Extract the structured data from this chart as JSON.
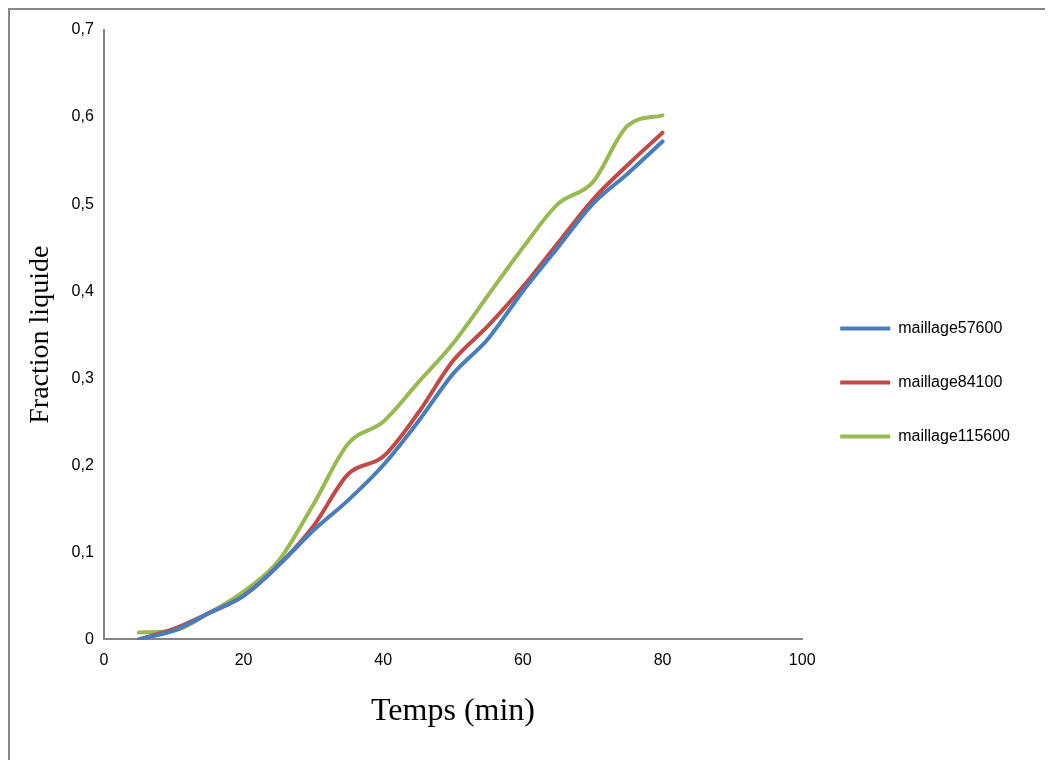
{
  "chart_data": {
    "type": "line",
    "xlabel": "Temps (min)",
    "ylabel": "Fraction liquide",
    "x": [
      5,
      10,
      15,
      20,
      25,
      30,
      35,
      40,
      45,
      50,
      55,
      60,
      65,
      70,
      75,
      80
    ],
    "series": [
      {
        "name": "maillage57600",
        "color": "#4a7ebb",
        "values": [
          0.0,
          0.01,
          0.03,
          0.05,
          0.085,
          0.125,
          0.16,
          0.2,
          0.25,
          0.305,
          0.345,
          0.4,
          0.45,
          0.5,
          0.535,
          0.572
        ]
      },
      {
        "name": "maillage84100",
        "color": "#be4b48",
        "values": [
          0.0,
          0.012,
          0.03,
          0.05,
          0.085,
          0.13,
          0.19,
          0.21,
          0.26,
          0.32,
          0.36,
          0.405,
          0.455,
          0.505,
          0.545,
          0.582
        ]
      },
      {
        "name": "maillage115600",
        "color": "#98b954",
        "values": [
          0.008,
          0.01,
          0.03,
          0.055,
          0.09,
          0.155,
          0.225,
          0.25,
          0.295,
          0.34,
          0.395,
          0.45,
          0.5,
          0.525,
          0.59,
          0.602
        ]
      }
    ],
    "xlim": [
      0,
      100
    ],
    "xticks": [
      0,
      20,
      40,
      60,
      80,
      100
    ],
    "ylim": [
      0,
      0.7
    ],
    "yticks": [
      {
        "value": 0,
        "label": "0"
      },
      {
        "value": 0.1,
        "label": "0,1"
      },
      {
        "value": 0.2,
        "label": "0,2"
      },
      {
        "value": 0.3,
        "label": "0,3"
      },
      {
        "value": 0.4,
        "label": "0,4"
      },
      {
        "value": 0.5,
        "label": "0,5"
      },
      {
        "value": 0.6,
        "label": "0,6"
      },
      {
        "value": 0.7,
        "label": "0,7"
      }
    ],
    "grid": false,
    "legend": "right",
    "marker": "none",
    "line_style": "solid"
  }
}
